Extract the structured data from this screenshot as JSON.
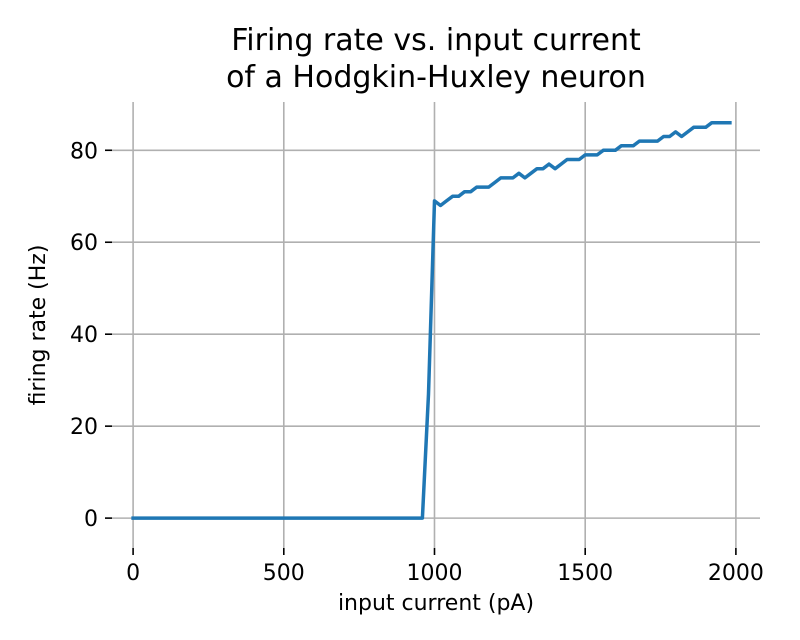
{
  "chart_data": {
    "type": "line",
    "title_line1": "Firing rate vs. input current",
    "title_line2": "of a Hodgkin-Huxley neuron",
    "xlabel": "input current (pA)",
    "ylabel": "firing rate (Hz)",
    "xlim": [
      -70,
      2080
    ],
    "ylim": [
      -6.5,
      90.5
    ],
    "xticks": [
      0,
      500,
      1000,
      1500,
      2000
    ],
    "yticks": [
      0,
      20,
      40,
      60,
      80
    ],
    "grid": true,
    "line_color": "#1f77b4",
    "series": [
      {
        "x": [
          0,
          100,
          200,
          300,
          400,
          500,
          600,
          700,
          800,
          900,
          960,
          980,
          1000,
          1020,
          1040,
          1060,
          1080,
          1100,
          1120,
          1140,
          1160,
          1180,
          1200,
          1220,
          1240,
          1260,
          1280,
          1300,
          1320,
          1340,
          1360,
          1380,
          1400,
          1420,
          1440,
          1460,
          1480,
          1500,
          1520,
          1540,
          1560,
          1580,
          1600,
          1620,
          1640,
          1660,
          1680,
          1700,
          1720,
          1740,
          1760,
          1780,
          1800,
          1820,
          1840,
          1860,
          1880,
          1900,
          1920,
          1940,
          1960,
          1980
        ],
        "y": [
          0,
          0,
          0,
          0,
          0,
          0,
          0,
          0,
          0,
          0,
          0,
          27,
          69,
          68,
          69,
          70,
          70,
          71,
          71,
          72,
          72,
          72,
          73,
          74,
          74,
          74,
          75,
          74,
          75,
          76,
          76,
          77,
          76,
          77,
          78,
          78,
          78,
          79,
          79,
          79,
          80,
          80,
          80,
          81,
          81,
          81,
          82,
          82,
          82,
          82,
          83,
          83,
          84,
          83,
          84,
          85,
          85,
          85,
          86,
          86,
          86,
          86
        ]
      }
    ]
  }
}
